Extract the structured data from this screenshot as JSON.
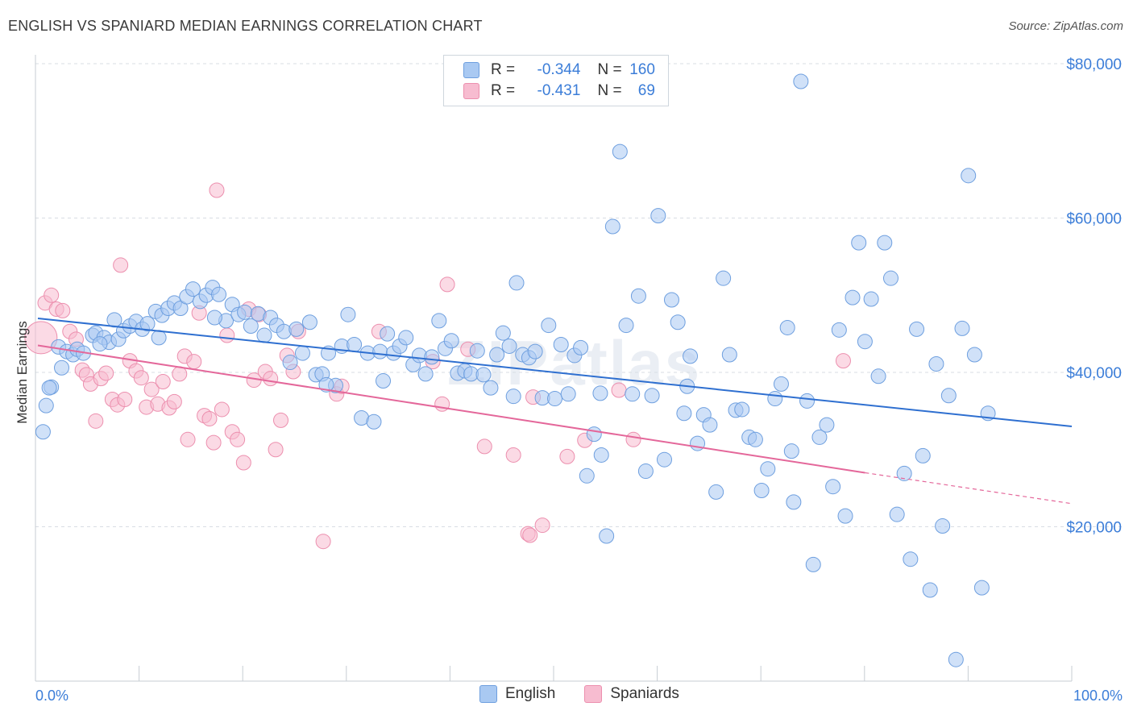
{
  "title": "ENGLISH VS SPANIARD MEDIAN EARNINGS CORRELATION CHART",
  "source": "Source: ZipAtlas.com",
  "watermark": "ZIPatlas",
  "legend": {
    "english": {
      "r_label": "R =",
      "r_value": "-0.344",
      "n_label": "N =",
      "n_value": "160"
    },
    "spaniards": {
      "r_label": "R =",
      "r_value": "-0.431",
      "n_label": "N =",
      "n_value": "69"
    }
  },
  "bottom_legend": [
    "English",
    "Spaniards"
  ],
  "colors": {
    "english_fill": "#a9c9f2",
    "english_stroke": "#6e9fdf",
    "english_line": "#2e6fd0",
    "spaniard_fill": "#f7bcd0",
    "spaniard_stroke": "#ec8fae",
    "spaniard_line": "#e4679a",
    "grid": "#d8dde3",
    "axis_text": "#3b7dd8"
  },
  "chart_data": {
    "type": "scatter",
    "title": "ENGLISH VS SPANIARD MEDIAN EARNINGS CORRELATION CHART",
    "xlabel": "",
    "ylabel": "Median Earnings",
    "xlim": [
      0,
      100
    ],
    "ylim": [
      0,
      80000
    ],
    "x_tick_labels": [
      "0.0%",
      "100.0%"
    ],
    "y_ticks": [
      20000,
      40000,
      60000,
      80000
    ],
    "y_tick_labels": [
      "$20,000",
      "$40,000",
      "$60,000",
      "$80,000"
    ],
    "grid": true,
    "series": [
      {
        "name": "English",
        "trend": {
          "x": [
            0,
            100
          ],
          "y": [
            47000,
            33000
          ]
        },
        "points": [
          [
            0.5,
            32300
          ],
          [
            0.8,
            35700
          ],
          [
            1.3,
            38100
          ],
          [
            2.0,
            43300
          ],
          [
            2.3,
            40600
          ],
          [
            2.8,
            42700
          ],
          [
            3.4,
            42300
          ],
          [
            3.8,
            43000
          ],
          [
            4.4,
            42500
          ],
          [
            5.3,
            44800
          ],
          [
            5.6,
            45100
          ],
          [
            6.4,
            44500
          ],
          [
            6.9,
            43900
          ],
          [
            7.4,
            46800
          ],
          [
            7.8,
            44300
          ],
          [
            8.3,
            45400
          ],
          [
            8.9,
            46000
          ],
          [
            9.5,
            46600
          ],
          [
            10.1,
            45600
          ],
          [
            10.6,
            46300
          ],
          [
            11.4,
            47900
          ],
          [
            12.0,
            47400
          ],
          [
            12.6,
            48300
          ],
          [
            13.2,
            49000
          ],
          [
            13.8,
            48300
          ],
          [
            14.4,
            49800
          ],
          [
            15.0,
            50800
          ],
          [
            15.7,
            49200
          ],
          [
            16.3,
            50000
          ],
          [
            16.9,
            51000
          ],
          [
            17.5,
            50100
          ],
          [
            18.2,
            46700
          ],
          [
            18.8,
            48800
          ],
          [
            19.4,
            47500
          ],
          [
            20.0,
            47800
          ],
          [
            20.6,
            46000
          ],
          [
            21.3,
            47600
          ],
          [
            21.9,
            44800
          ],
          [
            22.5,
            47100
          ],
          [
            23.1,
            46100
          ],
          [
            23.8,
            45300
          ],
          [
            24.4,
            41300
          ],
          [
            25.0,
            45600
          ],
          [
            25.6,
            42500
          ],
          [
            26.3,
            46500
          ],
          [
            26.9,
            39700
          ],
          [
            27.5,
            39800
          ],
          [
            28.1,
            42500
          ],
          [
            28.8,
            38300
          ],
          [
            29.4,
            43400
          ],
          [
            30.0,
            47500
          ],
          [
            30.6,
            43600
          ],
          [
            31.3,
            34100
          ],
          [
            31.9,
            42500
          ],
          [
            32.5,
            33600
          ],
          [
            33.1,
            42700
          ],
          [
            33.8,
            45000
          ],
          [
            34.4,
            42500
          ],
          [
            35.0,
            43400
          ],
          [
            35.6,
            44500
          ],
          [
            36.3,
            41000
          ],
          [
            36.9,
            42200
          ],
          [
            37.5,
            39800
          ],
          [
            38.1,
            42000
          ],
          [
            38.8,
            46700
          ],
          [
            39.4,
            43100
          ],
          [
            40.0,
            44100
          ],
          [
            40.6,
            39900
          ],
          [
            41.3,
            40200
          ],
          [
            41.9,
            39800
          ],
          [
            42.5,
            42800
          ],
          [
            43.1,
            39700
          ],
          [
            43.8,
            38000
          ],
          [
            44.4,
            42300
          ],
          [
            45.0,
            45100
          ],
          [
            45.6,
            43400
          ],
          [
            46.3,
            51600
          ],
          [
            46.9,
            42300
          ],
          [
            47.5,
            41900
          ],
          [
            48.1,
            42700
          ],
          [
            48.8,
            36700
          ],
          [
            49.4,
            46100
          ],
          [
            50.0,
            36600
          ],
          [
            50.6,
            43600
          ],
          [
            51.3,
            37200
          ],
          [
            51.9,
            42200
          ],
          [
            52.5,
            43200
          ],
          [
            53.1,
            26600
          ],
          [
            53.8,
            32000
          ],
          [
            54.4,
            37300
          ],
          [
            55.0,
            18800
          ],
          [
            55.6,
            58900
          ],
          [
            56.3,
            68600
          ],
          [
            56.9,
            46100
          ],
          [
            57.5,
            37200
          ],
          [
            58.1,
            49900
          ],
          [
            58.8,
            27200
          ],
          [
            59.4,
            37000
          ],
          [
            60.0,
            60300
          ],
          [
            60.6,
            28700
          ],
          [
            61.3,
            49400
          ],
          [
            61.9,
            46500
          ],
          [
            62.5,
            34700
          ],
          [
            63.1,
            42100
          ],
          [
            63.8,
            30800
          ],
          [
            64.4,
            34500
          ],
          [
            65.0,
            33200
          ],
          [
            65.6,
            24500
          ],
          [
            66.3,
            52200
          ],
          [
            66.9,
            42300
          ],
          [
            67.5,
            35100
          ],
          [
            68.1,
            35200
          ],
          [
            68.8,
            31600
          ],
          [
            69.4,
            31300
          ],
          [
            70.0,
            24700
          ],
          [
            70.6,
            27500
          ],
          [
            71.3,
            36600
          ],
          [
            71.9,
            38500
          ],
          [
            72.5,
            45800
          ],
          [
            73.1,
            23200
          ],
          [
            73.8,
            77700
          ],
          [
            74.4,
            36300
          ],
          [
            75.0,
            15100
          ],
          [
            75.6,
            31600
          ],
          [
            76.3,
            33200
          ],
          [
            76.9,
            25200
          ],
          [
            77.5,
            45500
          ],
          [
            78.1,
            21400
          ],
          [
            78.8,
            49700
          ],
          [
            79.4,
            56800
          ],
          [
            80.0,
            44000
          ],
          [
            80.6,
            49500
          ],
          [
            81.3,
            39500
          ],
          [
            81.9,
            56800
          ],
          [
            82.5,
            52200
          ],
          [
            83.1,
            21600
          ],
          [
            83.8,
            26900
          ],
          [
            84.4,
            15800
          ],
          [
            85.0,
            45600
          ],
          [
            85.6,
            29200
          ],
          [
            86.3,
            11800
          ],
          [
            86.9,
            41100
          ],
          [
            87.5,
            20100
          ],
          [
            88.1,
            37000
          ],
          [
            88.8,
            2800
          ],
          [
            89.4,
            45700
          ],
          [
            90.0,
            65500
          ],
          [
            90.6,
            42300
          ],
          [
            91.3,
            12100
          ],
          [
            91.9,
            34700
          ],
          [
            1.1,
            38000
          ],
          [
            6.0,
            43700
          ],
          [
            11.7,
            44500
          ],
          [
            17.1,
            47100
          ],
          [
            27.9,
            38400
          ],
          [
            33.4,
            38900
          ],
          [
            46.0,
            36900
          ],
          [
            54.5,
            29300
          ],
          [
            62.8,
            38200
          ],
          [
            72.9,
            29800
          ]
        ]
      },
      {
        "name": "Spaniards",
        "trend": {
          "x": [
            0,
            80,
            100
          ],
          "y": [
            43500,
            27000,
            23000
          ],
          "solid_until": 80
        },
        "points": [
          [
            0.3,
            44500
          ],
          [
            0.7,
            49000
          ],
          [
            1.3,
            50000
          ],
          [
            1.8,
            48200
          ],
          [
            2.4,
            48000
          ],
          [
            3.1,
            45300
          ],
          [
            3.7,
            44300
          ],
          [
            4.3,
            40300
          ],
          [
            4.7,
            39700
          ],
          [
            5.1,
            38500
          ],
          [
            5.6,
            33700
          ],
          [
            6.1,
            39200
          ],
          [
            6.6,
            39900
          ],
          [
            7.2,
            36500
          ],
          [
            7.7,
            35800
          ],
          [
            8.0,
            53900
          ],
          [
            8.4,
            36500
          ],
          [
            8.9,
            41500
          ],
          [
            9.5,
            40200
          ],
          [
            10.0,
            39300
          ],
          [
            10.5,
            35500
          ],
          [
            11.0,
            37800
          ],
          [
            11.6,
            35900
          ],
          [
            12.1,
            38800
          ],
          [
            12.7,
            35400
          ],
          [
            13.2,
            36200
          ],
          [
            13.7,
            39800
          ],
          [
            14.2,
            42100
          ],
          [
            14.5,
            31300
          ],
          [
            15.1,
            41400
          ],
          [
            15.6,
            47700
          ],
          [
            16.1,
            34400
          ],
          [
            16.6,
            34000
          ],
          [
            17.0,
            30900
          ],
          [
            17.3,
            63600
          ],
          [
            17.8,
            35200
          ],
          [
            18.3,
            44800
          ],
          [
            18.8,
            32300
          ],
          [
            19.3,
            31300
          ],
          [
            19.9,
            28300
          ],
          [
            20.4,
            48200
          ],
          [
            20.9,
            39000
          ],
          [
            21.4,
            47500
          ],
          [
            22.0,
            40100
          ],
          [
            22.5,
            39200
          ],
          [
            23.0,
            30000
          ],
          [
            23.5,
            33800
          ],
          [
            24.1,
            42200
          ],
          [
            24.7,
            40100
          ],
          [
            25.2,
            45300
          ],
          [
            27.6,
            18100
          ],
          [
            28.9,
            37200
          ],
          [
            29.4,
            38200
          ],
          [
            33.0,
            45300
          ],
          [
            38.2,
            41400
          ],
          [
            39.1,
            35900
          ],
          [
            39.6,
            51400
          ],
          [
            41.6,
            43000
          ],
          [
            43.2,
            30400
          ],
          [
            46.0,
            29300
          ],
          [
            47.4,
            19100
          ],
          [
            47.6,
            18900
          ],
          [
            48.8,
            20200
          ],
          [
            51.2,
            29100
          ],
          [
            52.9,
            31200
          ],
          [
            56.2,
            37700
          ],
          [
            57.6,
            31300
          ],
          [
            77.9,
            41500
          ],
          [
            47.9,
            36800
          ]
        ]
      }
    ]
  }
}
